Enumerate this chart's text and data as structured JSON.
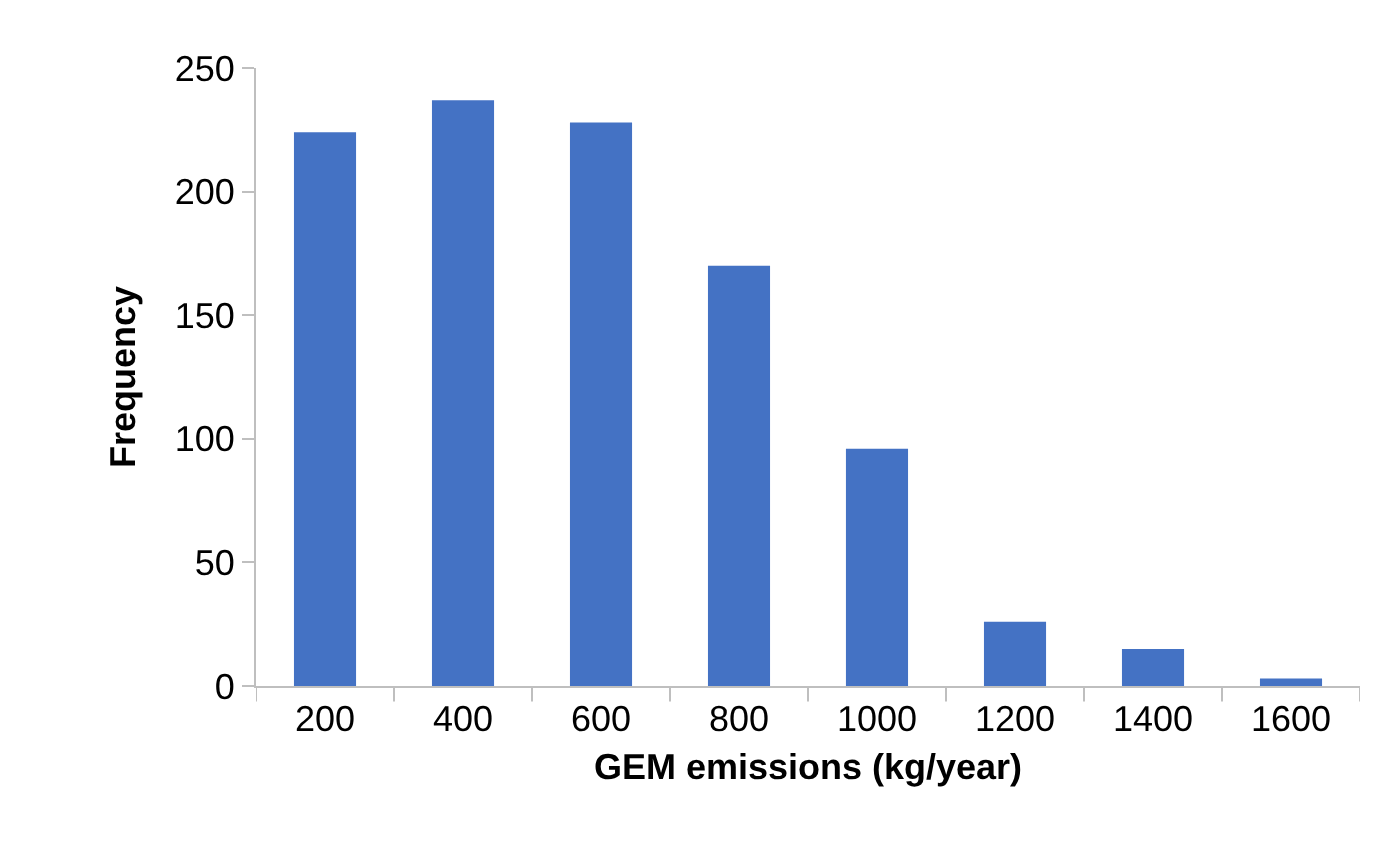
{
  "chart_data": {
    "type": "bar",
    "xlabel": "GEM emissions (kg/year)",
    "ylabel": "Frequency",
    "categories": [
      "200",
      "400",
      "600",
      "800",
      "1000",
      "1200",
      "1400",
      "1600"
    ],
    "values": [
      224,
      237,
      228,
      170,
      96,
      26,
      15,
      3
    ],
    "color": "#4472c4",
    "ylim": [
      0,
      250
    ],
    "yticks": [
      0,
      50,
      100,
      150,
      200,
      250
    ]
  }
}
